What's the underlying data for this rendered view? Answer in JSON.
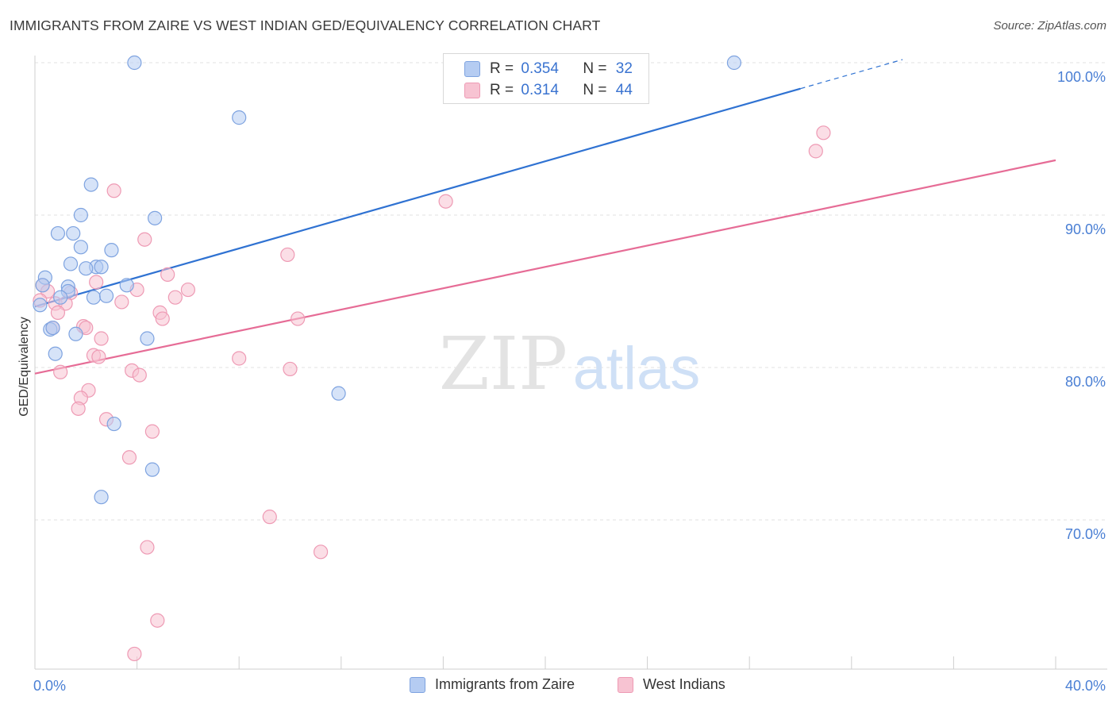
{
  "header": {
    "title": "IMMIGRANTS FROM ZAIRE VS WEST INDIAN GED/EQUIVALENCY CORRELATION CHART",
    "source": "Source: ZipAtlas.com"
  },
  "watermark": {
    "zip": "ZIP",
    "atlas": "atlas"
  },
  "legend": {
    "r_label": "R =",
    "n_label": "N =",
    "series": [
      {
        "name": "Immigrants from Zaire",
        "r": "0.354",
        "n": "32"
      },
      {
        "name": "West Indians",
        "r": "0.314",
        "n": "44"
      }
    ]
  },
  "colors": {
    "blue_fill": "#b5ccf2",
    "blue_stroke": "#7ea3e0",
    "blue_line": "#2f72d2",
    "pink_fill": "#f7c3d2",
    "pink_stroke": "#ee9ab4",
    "pink_line": "#e66c96",
    "axis_text": "#4a7fd4",
    "grid": "#e2e2e2"
  },
  "chart_data": {
    "type": "scatter",
    "title": "IMMIGRANTS FROM ZAIRE VS WEST INDIAN GED/EQUIVALENCY CORRELATION CHART",
    "xlabel": "",
    "ylabel": "GED/Equivalency",
    "xlim": [
      0,
      40
    ],
    "ylim": [
      60,
      101
    ],
    "x_tick_labels": [
      "0.0%",
      "40.0%"
    ],
    "y_ticks": [
      70,
      80,
      90,
      100
    ],
    "y_tick_labels": [
      "70.0%",
      "80.0%",
      "90.0%",
      "100.0%"
    ],
    "grid": true,
    "legend_position": "top-center",
    "series": [
      {
        "name": "Immigrants from Zaire",
        "r": 0.354,
        "n": 32,
        "trend": {
          "x0": 0.0,
          "y0": 84.0,
          "x1": 30.0,
          "y1": 98.3,
          "dash_to_x": 34.0
        },
        "points": [
          [
            3.9,
            100.0
          ],
          [
            27.4,
            100.0
          ],
          [
            8.0,
            96.4
          ],
          [
            2.2,
            92.0
          ],
          [
            1.8,
            90.0
          ],
          [
            4.7,
            89.8
          ],
          [
            0.9,
            88.8
          ],
          [
            1.5,
            88.8
          ],
          [
            1.8,
            87.9
          ],
          [
            3.0,
            87.7
          ],
          [
            1.4,
            86.8
          ],
          [
            2.4,
            86.6
          ],
          [
            2.6,
            86.6
          ],
          [
            2.0,
            86.5
          ],
          [
            0.4,
            85.9
          ],
          [
            0.3,
            85.4
          ],
          [
            1.3,
            85.3
          ],
          [
            3.6,
            85.4
          ],
          [
            1.3,
            85.0
          ],
          [
            1.0,
            84.6
          ],
          [
            2.3,
            84.6
          ],
          [
            2.8,
            84.7
          ],
          [
            0.2,
            84.1
          ],
          [
            0.6,
            82.5
          ],
          [
            0.7,
            82.6
          ],
          [
            1.6,
            82.2
          ],
          [
            4.4,
            81.9
          ],
          [
            0.8,
            80.9
          ],
          [
            11.9,
            78.3
          ],
          [
            3.1,
            76.3
          ],
          [
            4.6,
            73.3
          ],
          [
            2.6,
            71.5
          ]
        ]
      },
      {
        "name": "West Indians",
        "r": 0.314,
        "n": 44,
        "trend": {
          "x0": 0.0,
          "y0": 79.6,
          "x1": 40.0,
          "y1": 93.6
        },
        "points": [
          [
            30.9,
            95.4
          ],
          [
            30.6,
            94.2
          ],
          [
            3.1,
            91.6
          ],
          [
            16.1,
            90.9
          ],
          [
            4.3,
            88.4
          ],
          [
            9.9,
            87.4
          ],
          [
            5.2,
            86.1
          ],
          [
            2.4,
            85.6
          ],
          [
            0.3,
            85.4
          ],
          [
            0.5,
            85.0
          ],
          [
            1.4,
            84.9
          ],
          [
            4.0,
            85.1
          ],
          [
            6.0,
            85.1
          ],
          [
            5.5,
            84.6
          ],
          [
            0.8,
            84.2
          ],
          [
            1.2,
            84.2
          ],
          [
            3.4,
            84.3
          ],
          [
            0.9,
            83.6
          ],
          [
            4.9,
            83.6
          ],
          [
            5.0,
            83.2
          ],
          [
            10.3,
            83.2
          ],
          [
            0.7,
            82.6
          ],
          [
            1.9,
            82.7
          ],
          [
            2.6,
            81.9
          ],
          [
            2.3,
            80.8
          ],
          [
            2.5,
            80.7
          ],
          [
            8.0,
            80.6
          ],
          [
            1.0,
            79.7
          ],
          [
            3.8,
            79.8
          ],
          [
            4.1,
            79.5
          ],
          [
            10.0,
            79.9
          ],
          [
            2.1,
            78.5
          ],
          [
            1.8,
            78.0
          ],
          [
            1.7,
            77.3
          ],
          [
            2.8,
            76.6
          ],
          [
            4.6,
            75.8
          ],
          [
            3.7,
            74.1
          ],
          [
            9.2,
            70.2
          ],
          [
            4.4,
            68.2
          ],
          [
            11.2,
            67.9
          ],
          [
            4.8,
            63.4
          ],
          [
            3.9,
            61.2
          ],
          [
            0.2,
            84.4
          ],
          [
            2.0,
            82.6
          ]
        ]
      }
    ]
  }
}
